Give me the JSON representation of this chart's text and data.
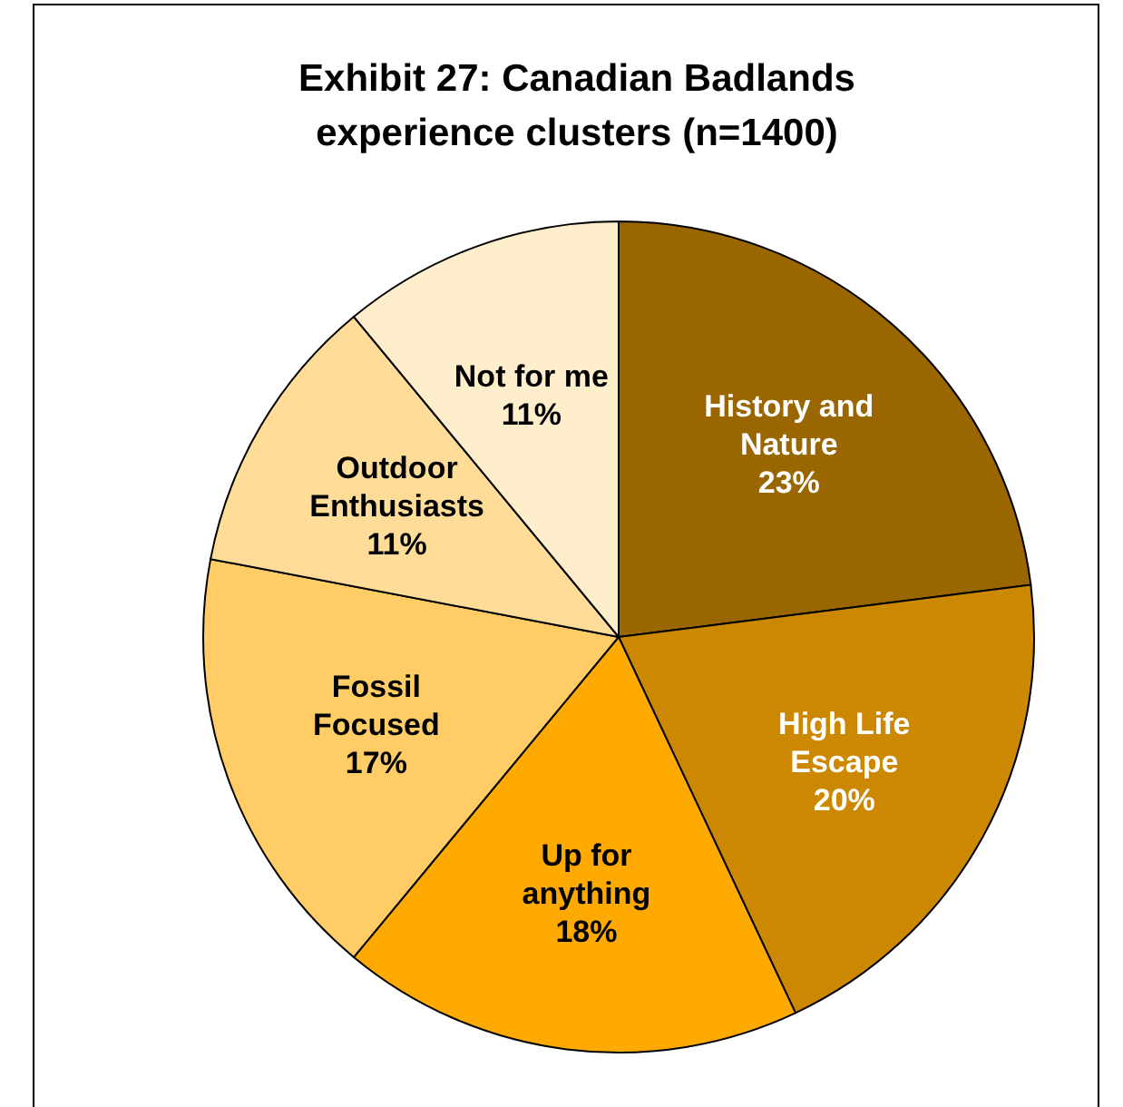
{
  "chart_data": {
    "type": "pie",
    "title": "Exhibit 27: Canadian Badlands experience clusters (n=1400)",
    "categories": [
      "History and Nature",
      "High Life Escape",
      "Up for anything",
      "Fossil Focused",
      "Outdoor Enthusiasts",
      "Not for me"
    ],
    "values": [
      23,
      20,
      18,
      17,
      11,
      11
    ],
    "colors": [
      "#996600",
      "#cc8800",
      "#ffaa00",
      "#ffcc66",
      "#ffdd99",
      "#ffeecc"
    ],
    "value_labels": [
      "23%",
      "20%",
      "18%",
      "17%",
      "11%",
      "11%"
    ]
  }
}
